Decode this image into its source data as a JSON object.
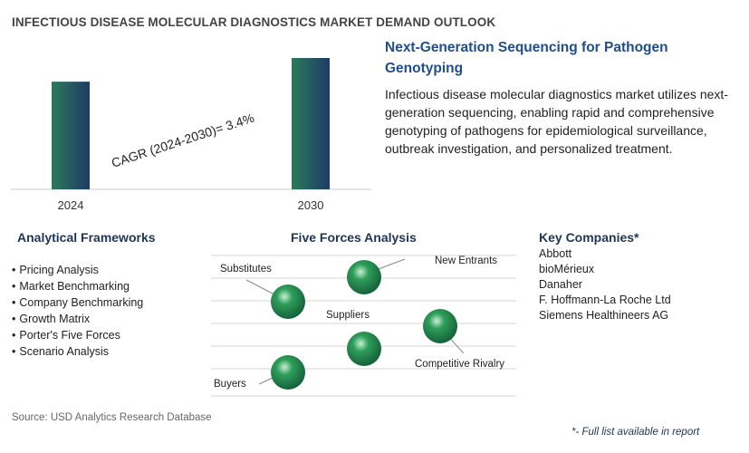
{
  "page_title": "INFECTIOUS DISEASE MOLECULAR DIAGNOSTICS MARKET DEMAND OUTLOOK",
  "chart_data": {
    "type": "bar",
    "categories": [
      "2024",
      "2030"
    ],
    "values": [
      1.0,
      1.22
    ],
    "annotation": "CAGR (2024-2030)=   3.4%",
    "bar_gradient": [
      "#2b7a5b",
      "#1f3b66"
    ]
  },
  "info": {
    "heading": "Next-Generation Sequencing for Pathogen Genotyping",
    "body": "Infectious disease molecular diagnostics market utilizes next-generation sequencing, enabling rapid and comprehensive genotyping of pathogens for epidemiological surveillance, outbreak investigation, and personalized treatment."
  },
  "frameworks": {
    "heading": "Analytical Frameworks",
    "items": [
      "Pricing Analysis",
      "Market Benchmarking",
      "Company Benchmarking",
      "Growth Matrix",
      "Porter's Five Forces",
      "Scenario Analysis"
    ]
  },
  "five_forces": {
    "heading": "Five Forces Analysis",
    "labels": {
      "substitutes": "Substitutes",
      "new_entrants": "New Entrants",
      "suppliers": "Suppliers",
      "competitive_rivalry": "Competitive Rivalry",
      "buyers": "Buyers"
    },
    "sphere_color": "#2e9e5a"
  },
  "companies": {
    "heading": "Key Companies*",
    "items": [
      "Abbott",
      "bioMérieux",
      "Danaher",
      "F. Hoffmann-La Roche Ltd",
      "Siemens Healthineers AG"
    ]
  },
  "source": "Source: USD Analytics Research Database",
  "footnote": "*- Full list available in report"
}
